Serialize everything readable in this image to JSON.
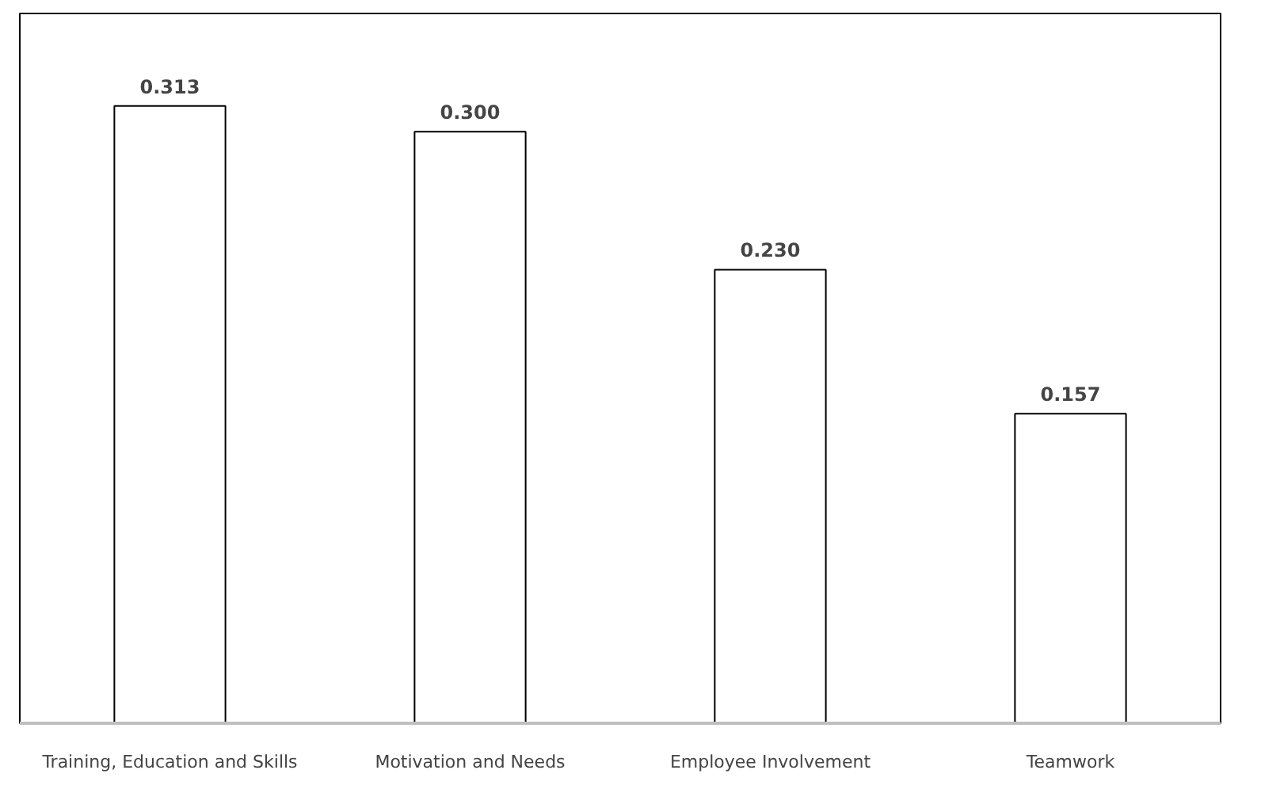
{
  "chart_data": {
    "type": "bar",
    "categories": [
      "Training, Education and Skills",
      "Motivation and Needs",
      "Employee Involvement",
      "Teamwork"
    ],
    "values": [
      0.313,
      0.3,
      0.23,
      0.157
    ],
    "value_labels": [
      "0.313",
      "0.300",
      "0.230",
      "0.157"
    ],
    "color": "#ffffff",
    "tick_labels": "x",
    "grid": false
  }
}
